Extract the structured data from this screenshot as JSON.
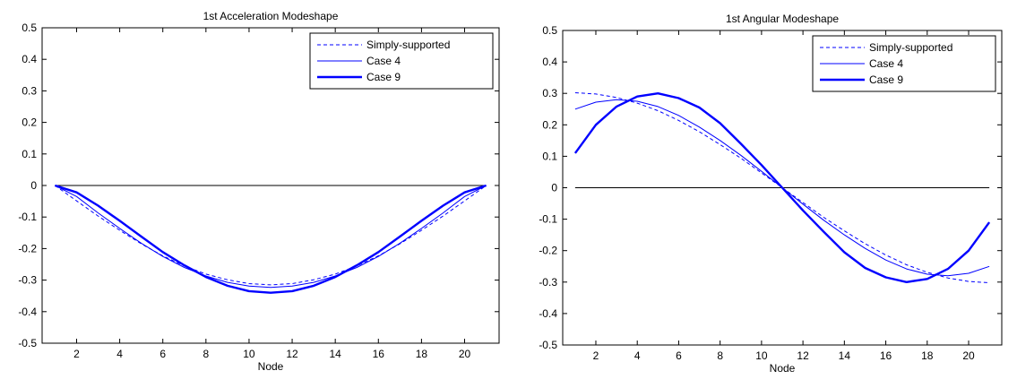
{
  "chart_data": [
    {
      "type": "line",
      "title": "1st Acceleration Modeshape",
      "xlabel": "Node",
      "ylabel": "",
      "xlim": [
        0.4,
        21.6
      ],
      "ylim": [
        -0.5,
        0.5
      ],
      "xticks": [
        2,
        4,
        6,
        8,
        10,
        12,
        14,
        16,
        18,
        20
      ],
      "yticks": [
        -0.5,
        -0.4,
        -0.3,
        -0.2,
        -0.1,
        0,
        0.1,
        0.2,
        0.3,
        0.4,
        0.5
      ],
      "ytick_labels": [
        "-0.5",
        "-0.4",
        "-0.3",
        "-0.2",
        "-0.1",
        "0",
        "0.1",
        "0.2",
        "0.3",
        "0.4",
        "0.5"
      ],
      "xtick_labels": [
        "2",
        "4",
        "6",
        "8",
        "10",
        "12",
        "14",
        "16",
        "18",
        "20"
      ],
      "legend_position": "top-right",
      "zero_line": true,
      "series": [
        {
          "name": "Simply-supported",
          "style": "dashed",
          "width": "thin",
          "color": "#0000ff",
          "x": [
            1,
            2,
            3,
            4,
            5,
            6,
            7,
            8,
            9,
            10,
            11,
            12,
            13,
            14,
            15,
            16,
            17,
            18,
            19,
            20,
            21
          ],
          "y": [
            0,
            -0.049,
            -0.097,
            -0.142,
            -0.185,
            -0.223,
            -0.255,
            -0.281,
            -0.299,
            -0.311,
            -0.315,
            -0.311,
            -0.299,
            -0.281,
            -0.255,
            -0.223,
            -0.185,
            -0.142,
            -0.097,
            -0.049,
            0
          ]
        },
        {
          "name": "Case 4",
          "style": "solid",
          "width": "thin",
          "color": "#0000ff",
          "x": [
            1,
            2,
            3,
            4,
            5,
            6,
            7,
            8,
            9,
            10,
            11,
            12,
            13,
            14,
            15,
            16,
            17,
            18,
            19,
            20,
            21
          ],
          "y": [
            0,
            -0.035,
            -0.087,
            -0.136,
            -0.183,
            -0.225,
            -0.26,
            -0.287,
            -0.307,
            -0.319,
            -0.323,
            -0.319,
            -0.307,
            -0.287,
            -0.26,
            -0.225,
            -0.183,
            -0.136,
            -0.087,
            -0.035,
            0
          ]
        },
        {
          "name": "Case 9",
          "style": "solid",
          "width": "thick",
          "color": "#0000ff",
          "x": [
            1,
            2,
            3,
            4,
            5,
            6,
            7,
            8,
            9,
            10,
            11,
            12,
            13,
            14,
            15,
            16,
            17,
            18,
            19,
            20,
            21
          ],
          "y": [
            0,
            -0.022,
            -0.064,
            -0.112,
            -0.162,
            -0.211,
            -0.253,
            -0.29,
            -0.318,
            -0.335,
            -0.34,
            -0.335,
            -0.318,
            -0.29,
            -0.253,
            -0.211,
            -0.162,
            -0.112,
            -0.064,
            -0.022,
            0
          ]
        }
      ]
    },
    {
      "type": "line",
      "title": "1st Angular Modeshape",
      "xlabel": "Node",
      "ylabel": "",
      "xlim": [
        0.4,
        21.6
      ],
      "ylim": [
        -0.5,
        0.5
      ],
      "xticks": [
        2,
        4,
        6,
        8,
        10,
        12,
        14,
        16,
        18,
        20
      ],
      "yticks": [
        -0.5,
        -0.4,
        -0.3,
        -0.2,
        -0.1,
        0,
        0.1,
        0.2,
        0.3,
        0.4,
        0.5
      ],
      "ytick_labels": [
        "-0.5",
        "-0.4",
        "-0.3",
        "-0.2",
        "-0.1",
        "0",
        "0.1",
        "0.2",
        "0.3",
        "0.4",
        "0.5"
      ],
      "xtick_labels": [
        "2",
        "4",
        "6",
        "8",
        "10",
        "12",
        "14",
        "16",
        "18",
        "20"
      ],
      "legend_position": "top-right",
      "zero_line": true,
      "series": [
        {
          "name": "Simply-supported",
          "style": "dashed",
          "width": "thin",
          "color": "#0000ff",
          "x": [
            1,
            2,
            3,
            4,
            5,
            6,
            7,
            8,
            9,
            10,
            11,
            12,
            13,
            14,
            15,
            16,
            17,
            18,
            19,
            20,
            21
          ],
          "y": [
            0.302,
            0.298,
            0.287,
            0.269,
            0.245,
            0.214,
            0.178,
            0.137,
            0.094,
            0.047,
            0,
            -0.047,
            -0.094,
            -0.137,
            -0.178,
            -0.214,
            -0.245,
            -0.269,
            -0.287,
            -0.298,
            -0.302
          ]
        },
        {
          "name": "Case 4",
          "style": "solid",
          "width": "thin",
          "color": "#0000ff",
          "x": [
            1,
            2,
            3,
            4,
            5,
            6,
            7,
            8,
            9,
            10,
            11,
            12,
            13,
            14,
            15,
            16,
            17,
            18,
            19,
            20,
            21
          ],
          "y": [
            0.25,
            0.272,
            0.28,
            0.275,
            0.258,
            0.23,
            0.193,
            0.15,
            0.103,
            0.052,
            0,
            -0.052,
            -0.103,
            -0.15,
            -0.193,
            -0.23,
            -0.258,
            -0.275,
            -0.28,
            -0.272,
            -0.25
          ]
        },
        {
          "name": "Case 9",
          "style": "solid",
          "width": "thick",
          "color": "#0000ff",
          "x": [
            1,
            2,
            3,
            4,
            5,
            6,
            7,
            8,
            9,
            10,
            11,
            12,
            13,
            14,
            15,
            16,
            17,
            18,
            19,
            20,
            21
          ],
          "y": [
            0.11,
            0.2,
            0.258,
            0.29,
            0.3,
            0.285,
            0.255,
            0.205,
            0.14,
            0.072,
            0,
            -0.072,
            -0.14,
            -0.205,
            -0.255,
            -0.285,
            -0.3,
            -0.29,
            -0.258,
            -0.2,
            -0.11
          ]
        }
      ]
    }
  ]
}
